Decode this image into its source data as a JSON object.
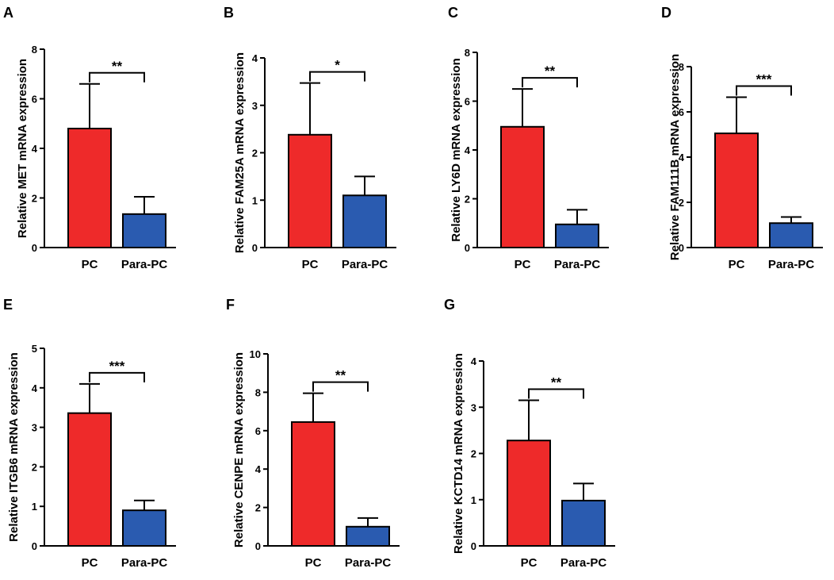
{
  "colors": {
    "pc": "#ee2a2a",
    "para_pc": "#2a5bb0",
    "axis": "#000000"
  },
  "chart_data": [
    {
      "panel": "A",
      "type": "bar",
      "categories": [
        "PC",
        "Para-PC"
      ],
      "ylabel": "Relative MET mRNA expression",
      "ylim": [
        0,
        8
      ],
      "yticks": [
        0,
        2,
        4,
        6,
        8
      ],
      "series": [
        {
          "name": "mean",
          "values": [
            4.8,
            1.35
          ]
        }
      ],
      "error_upper": [
        6.6,
        2.05
      ],
      "significance": "**"
    },
    {
      "panel": "B",
      "type": "bar",
      "categories": [
        "PC",
        "Para-PC"
      ],
      "ylabel": "Relative FAM25A mRNA expression",
      "ylim": [
        0,
        4
      ],
      "yticks": [
        0,
        1,
        2,
        3,
        4
      ],
      "series": [
        {
          "name": "mean",
          "values": [
            2.38,
            1.1
          ]
        }
      ],
      "error_upper": [
        3.47,
        1.5
      ],
      "significance": "*"
    },
    {
      "panel": "C",
      "type": "bar",
      "categories": [
        "PC",
        "Para-PC"
      ],
      "ylabel": "Relative LY6D mRNA expression",
      "ylim": [
        0,
        8
      ],
      "yticks": [
        0,
        2,
        4,
        6,
        8
      ],
      "series": [
        {
          "name": "mean",
          "values": [
            4.95,
            0.95
          ]
        }
      ],
      "error_upper": [
        6.5,
        1.55
      ],
      "significance": "**"
    },
    {
      "panel": "D",
      "type": "bar",
      "categories": [
        "PC",
        "Para-PC"
      ],
      "ylabel": "Relative FAM111B mRNA expression",
      "ylim": [
        0,
        8
      ],
      "yticks": [
        0,
        2,
        4,
        6,
        8
      ],
      "series": [
        {
          "name": "mean",
          "values": [
            5.05,
            1.08
          ]
        }
      ],
      "error_upper": [
        6.65,
        1.35
      ],
      "significance": "***"
    },
    {
      "panel": "E",
      "type": "bar",
      "categories": [
        "PC",
        "Para-PC"
      ],
      "ylabel": "Relative ITGB6 mRNA expression",
      "ylim": [
        0,
        5
      ],
      "yticks": [
        0,
        1,
        2,
        3,
        4,
        5
      ],
      "series": [
        {
          "name": "mean",
          "values": [
            3.36,
            0.9
          ]
        }
      ],
      "error_upper": [
        4.1,
        1.15
      ],
      "significance": "***"
    },
    {
      "panel": "F",
      "type": "bar",
      "categories": [
        "PC",
        "Para-PC"
      ],
      "ylabel": "Relative CENPE mRNA expression",
      "ylim": [
        0,
        10
      ],
      "yticks": [
        0,
        2,
        4,
        6,
        8,
        10
      ],
      "series": [
        {
          "name": "mean",
          "values": [
            6.45,
            1.0
          ]
        }
      ],
      "error_upper": [
        7.95,
        1.45
      ],
      "significance": "**"
    },
    {
      "panel": "G",
      "type": "bar",
      "categories": [
        "PC",
        "Para-PC"
      ],
      "ylabel": "Relative KCTD14 mRNA expression",
      "ylim": [
        0,
        4
      ],
      "yticks": [
        0,
        1,
        2,
        3,
        4
      ],
      "series": [
        {
          "name": "mean",
          "values": [
            2.28,
            0.98
          ]
        }
      ],
      "error_upper": [
        3.15,
        1.35
      ],
      "significance": "**"
    }
  ]
}
